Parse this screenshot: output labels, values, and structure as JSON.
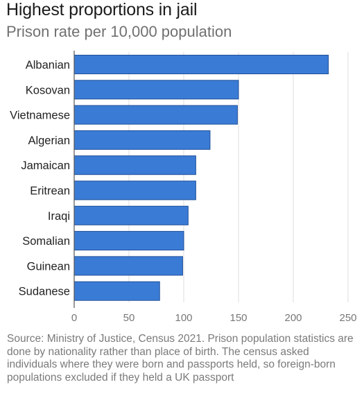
{
  "header": {
    "title": "Highest proportions in jail",
    "subtitle": "Prison rate per 10,000 population"
  },
  "source_note": "Source: Ministry of Justice, Census 2021. Prison population statistics are done by nationality rather than place of birth. The census asked individuals where they were born and passports held, so foreign-born populations excluded if they held a UK passport",
  "colors": {
    "bar": "#3a7bd5",
    "bar_stroke": "#1f4f99",
    "grid": "#dddddd",
    "axis_label": "#777777"
  },
  "chart_data": {
    "type": "bar",
    "orientation": "horizontal",
    "title": "Highest proportions in jail",
    "subtitle": "Prison rate per 10,000 population",
    "categories": [
      "Albanian",
      "Kosovan",
      "Vietnamese",
      "Algerian",
      "Jamaican",
      "Eritrean",
      "Iraqi",
      "Somalian",
      "Guinean",
      "Sudanese"
    ],
    "values": [
      232,
      150,
      149,
      124,
      111,
      111,
      104,
      100,
      99,
      78
    ],
    "xlim": [
      0,
      250
    ],
    "xticks": [
      0,
      50,
      100,
      150,
      200,
      250
    ],
    "xlabel": "",
    "ylabel": "",
    "grid": true,
    "legend": "none"
  }
}
